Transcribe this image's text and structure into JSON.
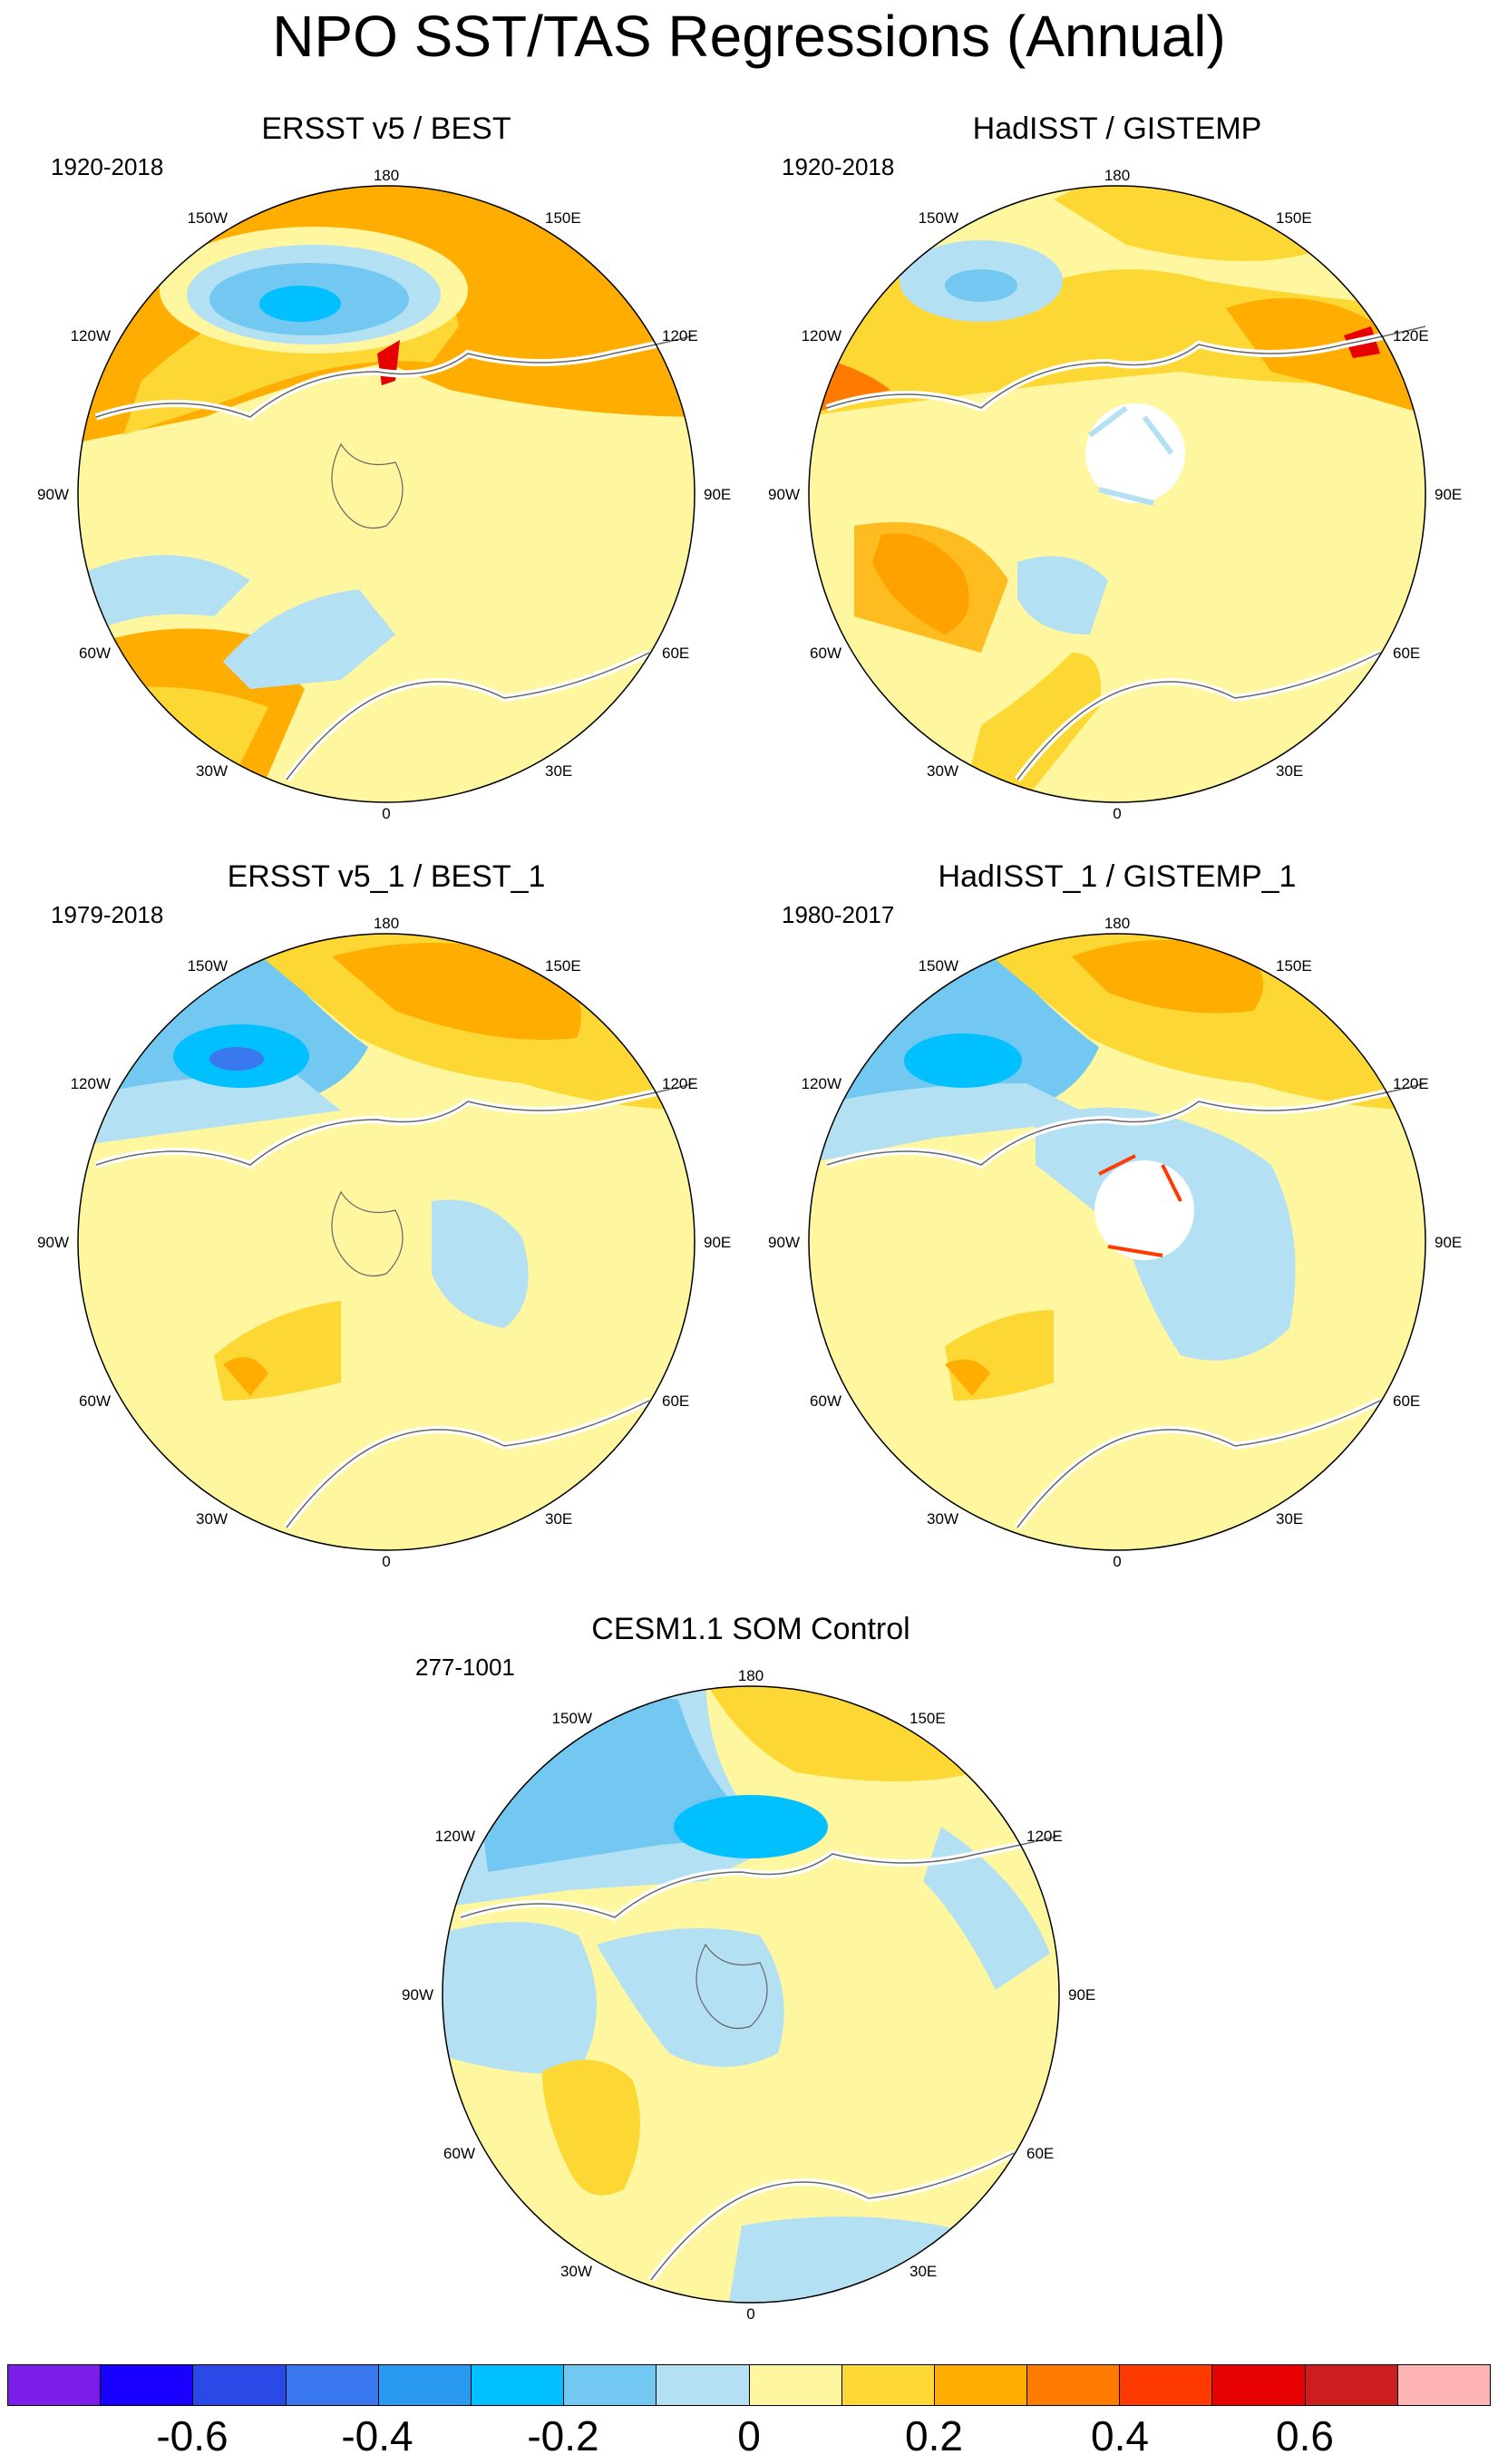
{
  "title": "NPO SST/TAS Regressions (Annual)",
  "panels": [
    {
      "title": "ERSST v5 / BEST",
      "period": "1920-2018"
    },
    {
      "title": "HadISST / GISTEMP",
      "period": "1920-2018"
    },
    {
      "title": "ERSST v5_1 / BEST_1",
      "period": "1979-2018"
    },
    {
      "title": "HadISST_1 / GISTEMP_1",
      "period": "1980-2017"
    },
    {
      "title": "CESM1.1 SOM Control",
      "period": "277-1001"
    }
  ],
  "longitude_labels": [
    "180",
    "150E",
    "120E",
    "90E",
    "60E",
    "30E",
    "0",
    "30W",
    "60W",
    "90W",
    "120W",
    "150W"
  ],
  "colorbar": {
    "colors": [
      "#7b1fe8",
      "#1a00ff",
      "#2a4ae8",
      "#3a78f0",
      "#2a9af0",
      "#00c0ff",
      "#72c8f0",
      "#b4e0f4",
      "#fff7a0",
      "#fdd835",
      "#ffad00",
      "#ff7a00",
      "#ff3a00",
      "#e60000",
      "#cc1e1e",
      "#ffb4b4"
    ],
    "labels": [
      "-0.6",
      "-0.4",
      "-0.2",
      "0",
      "0.2",
      "0.4",
      "0.6"
    ],
    "boundaries": [
      -0.7,
      -0.6,
      -0.5,
      -0.4,
      -0.3,
      -0.2,
      -0.1,
      0,
      0.1,
      0.2,
      0.3,
      0.4,
      0.5,
      0.6,
      0.7
    ]
  },
  "colors": {
    "background": "#ffffff",
    "coast": "#666666",
    "land_gap": "#ffffff"
  }
}
